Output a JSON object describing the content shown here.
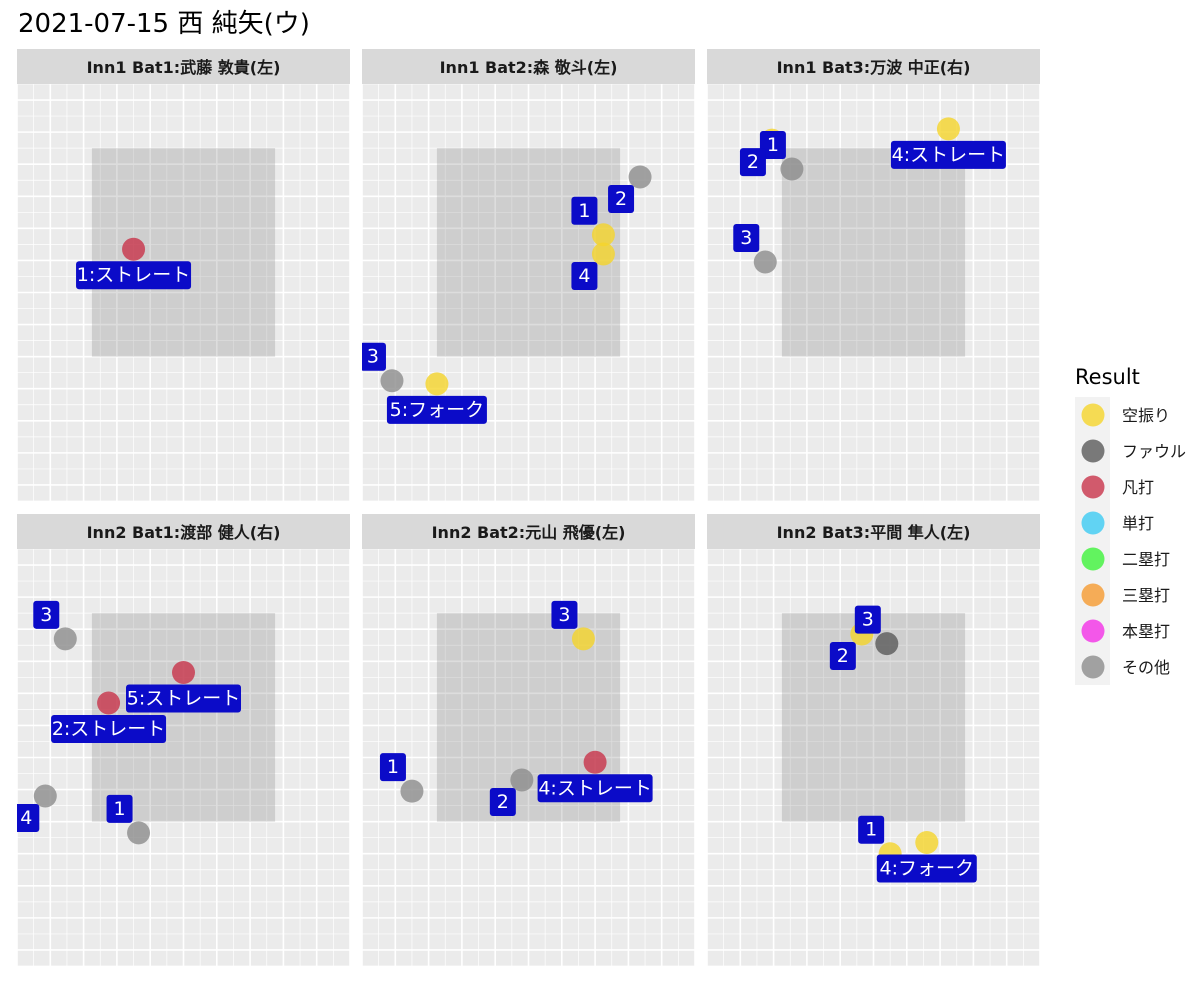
{
  "title": "2021-07-15 西 純矢(ウ)",
  "legend": {
    "title": "Result",
    "items": [
      {
        "key": "swinging_strike",
        "label": "空振り",
        "color": "#f5d42a"
      },
      {
        "key": "foul",
        "label": "ファウル",
        "color": "#5a5a5a"
      },
      {
        "key": "out",
        "label": "凡打",
        "color": "#c8334a"
      },
      {
        "key": "single",
        "label": "単打",
        "color": "#3ccaf2"
      },
      {
        "key": "double",
        "label": "二塁打",
        "color": "#3df23a"
      },
      {
        "key": "triple",
        "label": "三塁打",
        "color": "#f59a30"
      },
      {
        "key": "homerun",
        "label": "本塁打",
        "color": "#f230e6"
      },
      {
        "key": "other",
        "label": "その他",
        "color": "#8c8c8c"
      }
    ]
  },
  "chart_data": {
    "type": "scatter",
    "xlim": [
      -1.0,
      1.0
    ],
    "ylim": [
      -0.9,
      1.7
    ],
    "strike_zone": {
      "x": [
        -0.55,
        0.55
      ],
      "y": [
        0.0,
        1.3
      ]
    },
    "grid": true,
    "panels": [
      {
        "title": "Inn1 Bat1:武藤 敦貴(左)",
        "pitches": [
          {
            "n": 1,
            "x": -0.3,
            "y": 0.67,
            "result": "out",
            "label": "1:ストレート"
          }
        ]
      },
      {
        "title": "Inn1 Bat2:森 敬斗(左)",
        "pitches": [
          {
            "n": 1,
            "x": 0.45,
            "y": 0.76,
            "result": "swinging_strike",
            "label": "1"
          },
          {
            "n": 2,
            "x": 0.67,
            "y": 1.12,
            "result": "other",
            "label": "2"
          },
          {
            "n": 3,
            "x": -0.82,
            "y": -0.15,
            "result": "other",
            "label": "3"
          },
          {
            "n": 4,
            "x": 0.45,
            "y": 0.64,
            "result": "swinging_strike",
            "label": "4"
          },
          {
            "n": 5,
            "x": -0.55,
            "y": -0.17,
            "result": "swinging_strike",
            "label": "5:フォーク"
          }
        ]
      },
      {
        "title": "Inn1 Bat3:万波 中正(右)",
        "pitches": [
          {
            "n": 1,
            "x": -0.49,
            "y": 1.17,
            "result": "other",
            "label": "1"
          },
          {
            "n": 2,
            "x": -0.61,
            "y": 1.35,
            "result": "swinging_strike",
            "label": "2"
          },
          {
            "n": 3,
            "x": -0.65,
            "y": 0.59,
            "result": "other",
            "label": "3"
          },
          {
            "n": 4,
            "x": 0.45,
            "y": 1.42,
            "result": "swinging_strike",
            "label": "4:ストレート"
          }
        ]
      },
      {
        "title": "Inn2 Bat1:渡部 健人(右)",
        "pitches": [
          {
            "n": 1,
            "x": -0.27,
            "y": -0.07,
            "result": "other",
            "label": "1"
          },
          {
            "n": 2,
            "x": -0.45,
            "y": 0.74,
            "result": "out",
            "label": "2:ストレート"
          },
          {
            "n": 3,
            "x": -0.71,
            "y": 1.14,
            "result": "other",
            "label": "3"
          },
          {
            "n": 4,
            "x": -0.83,
            "y": 0.16,
            "result": "other",
            "label": "4"
          },
          {
            "n": 5,
            "x": 0.0,
            "y": 0.93,
            "result": "out",
            "label": "5:ストレート"
          }
        ]
      },
      {
        "title": "Inn2 Bat2:元山 飛優(左)",
        "pitches": [
          {
            "n": 1,
            "x": -0.7,
            "y": 0.19,
            "result": "other",
            "label": "1"
          },
          {
            "n": 2,
            "x": -0.04,
            "y": 0.26,
            "result": "other",
            "label": "2"
          },
          {
            "n": 3,
            "x": 0.33,
            "y": 1.14,
            "result": "swinging_strike",
            "label": "3"
          },
          {
            "n": 4,
            "x": 0.4,
            "y": 0.37,
            "result": "out",
            "label": "4:ストレート"
          }
        ]
      },
      {
        "title": "Inn2 Bat3:平間 隼人(左)",
        "pitches": [
          {
            "n": 1,
            "x": 0.1,
            "y": -0.2,
            "result": "swinging_strike",
            "label": "1"
          },
          {
            "n": 2,
            "x": -0.07,
            "y": 1.17,
            "result": "swinging_strike",
            "label": "2"
          },
          {
            "n": 3,
            "x": 0.08,
            "y": 1.11,
            "result": "foul",
            "label": "3"
          },
          {
            "n": 4,
            "x": 0.32,
            "y": -0.13,
            "result": "swinging_strike",
            "label": "4:フォーク"
          }
        ]
      }
    ]
  }
}
